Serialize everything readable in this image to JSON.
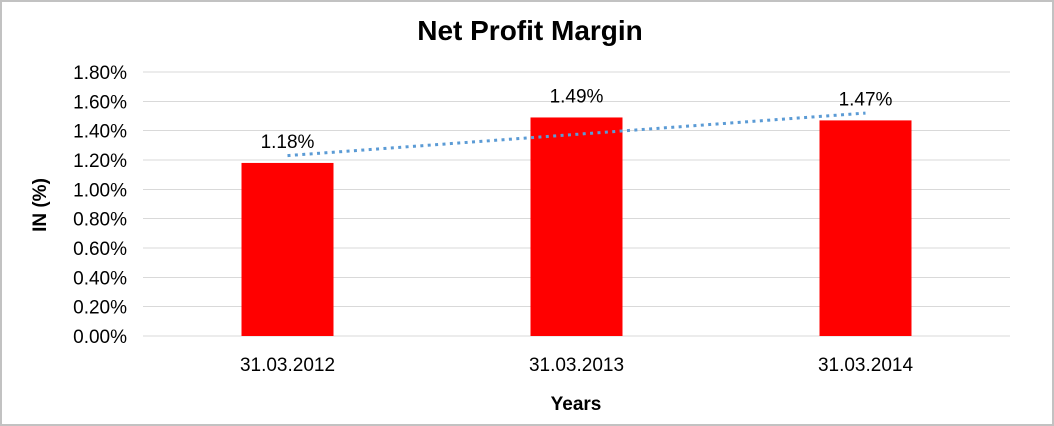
{
  "frame": {
    "background": "#ffffff",
    "border_color": "#c2c2c2"
  },
  "chart_data": {
    "type": "bar",
    "title": "Net Profit Margin",
    "xlabel": "Years",
    "ylabel": "IN (%)",
    "categories": [
      "31.03.2012",
      "31.03.2013",
      "31.03.2014"
    ],
    "series": [
      {
        "name": "Net Profit Margin",
        "values": [
          1.18,
          1.49,
          1.47
        ]
      }
    ],
    "data_labels": [
      "1.18%",
      "1.49%",
      "1.47%"
    ],
    "ylim": [
      0,
      1.8
    ],
    "ytick_step": 0.2,
    "ytick_labels": [
      "0.00%",
      "0.20%",
      "0.40%",
      "0.60%",
      "0.80%",
      "1.00%",
      "1.20%",
      "1.40%",
      "1.60%",
      "1.80%"
    ],
    "grid": true,
    "legend": "none",
    "bar_color": "#ff0000",
    "gridline_color": "#d9d9d9",
    "text_color": "#000000",
    "trendline": {
      "type": "linear",
      "style": "dotted",
      "color": "#5b9bd5",
      "start_value": 1.23,
      "end_value": 1.52
    }
  }
}
